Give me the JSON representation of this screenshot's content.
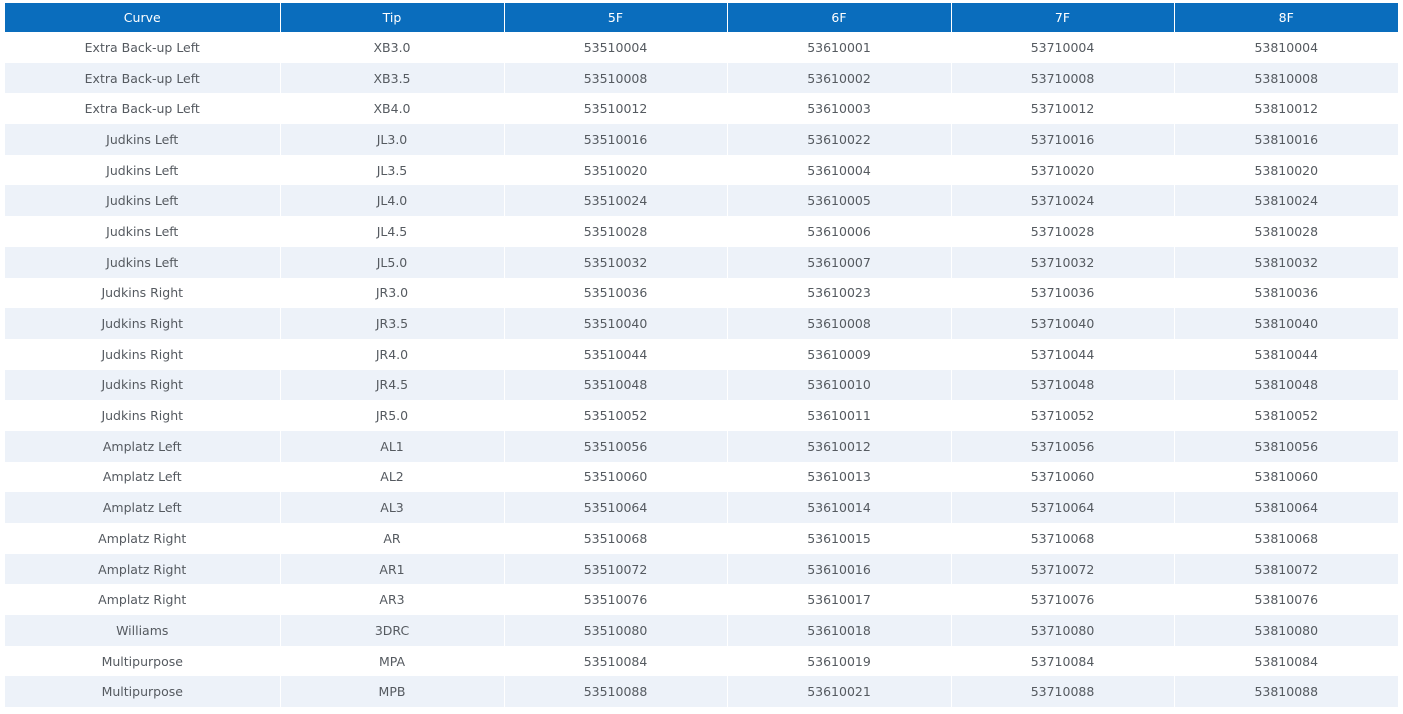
{
  "table": {
    "headers": [
      "Curve",
      "Tip",
      "5F",
      "6F",
      "7F",
      "8F"
    ],
    "rows": [
      [
        "Extra Back-up Left",
        "XB3.0",
        "53510004",
        "53610001",
        "53710004",
        "53810004"
      ],
      [
        "Extra Back-up Left",
        "XB3.5",
        "53510008",
        "53610002",
        "53710008",
        "53810008"
      ],
      [
        "Extra Back-up Left",
        "XB4.0",
        "53510012",
        "53610003",
        "53710012",
        "53810012"
      ],
      [
        "Judkins Left",
        "JL3.0",
        "53510016",
        "53610022",
        "53710016",
        "53810016"
      ],
      [
        "Judkins Left",
        "JL3.5",
        "53510020",
        "53610004",
        "53710020",
        "53810020"
      ],
      [
        "Judkins Left",
        "JL4.0",
        "53510024",
        "53610005",
        "53710024",
        "53810024"
      ],
      [
        "Judkins Left",
        "JL4.5",
        "53510028",
        "53610006",
        "53710028",
        "53810028"
      ],
      [
        "Judkins Left",
        "JL5.0",
        "53510032",
        "53610007",
        "53710032",
        "53810032"
      ],
      [
        "Judkins Right",
        "JR3.0",
        "53510036",
        "53610023",
        "53710036",
        "53810036"
      ],
      [
        "Judkins Right",
        "JR3.5",
        "53510040",
        "53610008",
        "53710040",
        "53810040"
      ],
      [
        "Judkins Right",
        "JR4.0",
        "53510044",
        "53610009",
        "53710044",
        "53810044"
      ],
      [
        "Judkins Right",
        "JR4.5",
        "53510048",
        "53610010",
        "53710048",
        "53810048"
      ],
      [
        "Judkins Right",
        "JR5.0",
        "53510052",
        "53610011",
        "53710052",
        "53810052"
      ],
      [
        "Amplatz Left",
        "AL1",
        "53510056",
        "53610012",
        "53710056",
        "53810056"
      ],
      [
        "Amplatz Left",
        "AL2",
        "53510060",
        "53610013",
        "53710060",
        "53810060"
      ],
      [
        "Amplatz Left",
        "AL3",
        "53510064",
        "53610014",
        "53710064",
        "53810064"
      ],
      [
        "Amplatz Right",
        "AR",
        "53510068",
        "53610015",
        "53710068",
        "53810068"
      ],
      [
        "Amplatz Right",
        "AR1",
        "53510072",
        "53610016",
        "53710072",
        "53810072"
      ],
      [
        "Amplatz Right",
        "AR3",
        "53510076",
        "53610017",
        "53710076",
        "53810076"
      ],
      [
        "Williams",
        "3DRC",
        "53510080",
        "53610018",
        "53710080",
        "53810080"
      ],
      [
        "Multipurpose",
        "MPA",
        "53510084",
        "53610019",
        "53710084",
        "53810084"
      ],
      [
        "Multipurpose",
        "MPB",
        "53510088",
        "53610021",
        "53710088",
        "53810088"
      ]
    ]
  },
  "colors": {
    "header_background": "#0a6dbd",
    "header_text": "#ffffff",
    "row_stripe": "#edf2f9",
    "cell_text": "#555a60"
  }
}
